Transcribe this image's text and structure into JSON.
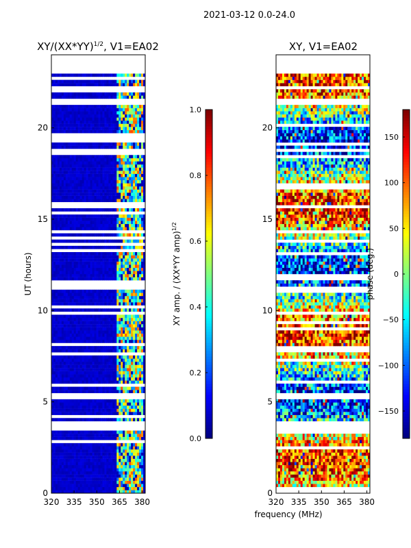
{
  "suptitle": "2021-03-12 0.0-24.0",
  "xlabel": "frequency (MHz)",
  "chart_data": [
    {
      "type": "heatmap",
      "title_main": "XY/(XX*YY)",
      "title_sup": "1/2",
      "title_rest": ", V1=EA02",
      "ylabel": "UT (hours)",
      "xlim": [
        320,
        382
      ],
      "ylim": [
        0,
        24
      ],
      "xticks": [
        320,
        335,
        350,
        365,
        380
      ],
      "yticks": [
        0,
        5,
        10,
        15,
        20
      ],
      "colorscale": "jet",
      "colorbar": {
        "label_main": "XY amp. / (XX*YY amp)",
        "label_sup": "1/2",
        "range": [
          0.0,
          1.0
        ],
        "ticks": [
          "0.0",
          "0.2",
          "0.4",
          "0.6",
          "0.8",
          "1.0"
        ]
      },
      "data_gaps_hours": [
        [
          3.5,
          3.9
        ],
        [
          5.2,
          5.5
        ],
        [
          21.3,
          21.6
        ],
        [
          23.0,
          24.0
        ]
      ],
      "dominant_value": 0.05,
      "bright_band_mhz": [
        363,
        381
      ]
    },
    {
      "type": "heatmap",
      "title": "XY, V1=EA02",
      "xlim": [
        320,
        382
      ],
      "ylim": [
        0,
        24
      ],
      "xticks": [
        320,
        335,
        350,
        365,
        380
      ],
      "yticks": [
        0,
        5,
        10,
        15,
        20
      ],
      "colorscale": "jet",
      "colorbar": {
        "label": "phase (deg.)",
        "range": [
          -180,
          180
        ],
        "ticks": [
          "−150",
          "−100",
          "−50",
          "0",
          "50",
          "100",
          "150"
        ]
      },
      "data_gaps_hours": [
        [
          3.5,
          3.9
        ],
        [
          5.2,
          5.5
        ],
        [
          21.3,
          21.6
        ],
        [
          23.0,
          24.0
        ]
      ]
    }
  ]
}
